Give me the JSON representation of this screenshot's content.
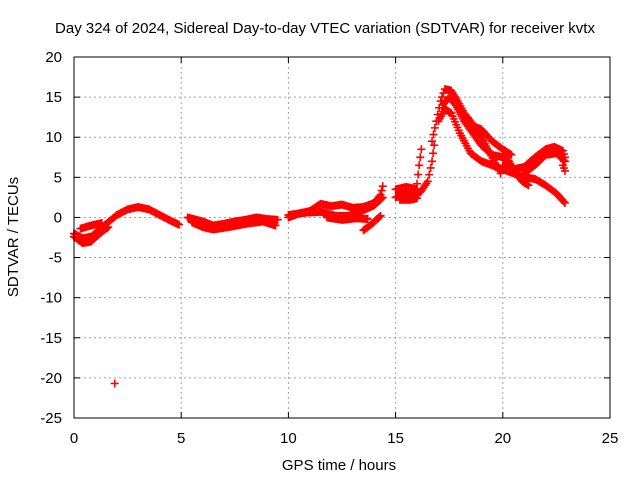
{
  "chart_data": {
    "type": "scatter",
    "title": "Day 324 of 2024, Sidereal Day-to-day VTEC variation (SDTVAR) for receiver kvtx",
    "xlabel": "GPS time / hours",
    "ylabel": "SDTVAR / TECUs",
    "xlim": [
      0,
      25
    ],
    "ylim": [
      -25,
      20
    ],
    "xticks": [
      0,
      5,
      10,
      15,
      20,
      25
    ],
    "yticks": [
      -25,
      -20,
      -15,
      -10,
      -5,
      0,
      5,
      10,
      15,
      20
    ],
    "grid": true,
    "marker": "+",
    "color": "#ff0000",
    "series": [
      {
        "name": "tracks",
        "tracks": [
          [
            [
              0.0,
              -2.0
            ],
            [
              0.4,
              -2.6
            ],
            [
              0.8,
              -2.4
            ],
            [
              1.2,
              -1.5
            ],
            [
              1.5,
              -0.8
            ],
            [
              2.0,
              0.3
            ],
            [
              2.5,
              1.0
            ],
            [
              3.0,
              1.3
            ],
            [
              3.5,
              1.0
            ],
            [
              4.0,
              0.3
            ],
            [
              4.5,
              -0.4
            ],
            [
              4.9,
              -0.9
            ]
          ],
          [
            [
              0.0,
              -2.4
            ],
            [
              0.4,
              -3.2
            ],
            [
              0.8,
              -3.0
            ],
            [
              1.2,
              -2.0
            ],
            [
              1.6,
              -1.2
            ]
          ],
          [
            [
              0.3,
              -1.4
            ],
            [
              0.8,
              -1.0
            ],
            [
              1.3,
              -0.7
            ]
          ],
          [
            [
              5.3,
              0.0
            ],
            [
              6.0,
              -0.5
            ],
            [
              6.5,
              -1.0
            ],
            [
              7.0,
              -0.8
            ],
            [
              7.5,
              -0.5
            ],
            [
              8.0,
              -0.3
            ],
            [
              8.5,
              0.0
            ],
            [
              9.0,
              -0.2
            ],
            [
              9.5,
              -0.3
            ]
          ],
          [
            [
              5.5,
              -0.6
            ],
            [
              6.0,
              -1.2
            ],
            [
              6.5,
              -1.5
            ],
            [
              7.2,
              -1.2
            ],
            [
              8.0,
              -0.8
            ],
            [
              8.8,
              -0.5
            ],
            [
              9.4,
              -1.0
            ]
          ],
          [
            [
              10.0,
              0.0
            ],
            [
              10.5,
              0.5
            ],
            [
              11.0,
              0.8
            ],
            [
              11.5,
              1.7
            ],
            [
              12.0,
              1.4
            ],
            [
              12.5,
              1.6
            ],
            [
              13.0,
              1.2
            ],
            [
              13.5,
              1.3
            ],
            [
              14.0,
              1.8
            ],
            [
              14.3,
              2.8
            ],
            [
              14.4,
              3.9
            ]
          ],
          [
            [
              10.0,
              0.3
            ],
            [
              10.8,
              0.6
            ],
            [
              11.5,
              0.7
            ],
            [
              12.2,
              0.2
            ],
            [
              12.8,
              0.2
            ],
            [
              13.4,
              0.8
            ],
            [
              14.0,
              1.5
            ],
            [
              14.4,
              2.5
            ]
          ],
          [
            [
              11.8,
              0.0
            ],
            [
              12.5,
              -0.3
            ],
            [
              13.2,
              -0.1
            ],
            [
              13.7,
              -0.2
            ]
          ],
          [
            [
              13.5,
              -1.6
            ],
            [
              13.9,
              -0.8
            ],
            [
              14.3,
              0.2
            ]
          ],
          [
            [
              15.0,
              2.5
            ],
            [
              15.3,
              2.8
            ],
            [
              15.7,
              3.0
            ],
            [
              16.0,
              2.8
            ],
            [
              16.2,
              3.3
            ],
            [
              16.5,
              4.5
            ],
            [
              16.7,
              7.0
            ],
            [
              16.8,
              9.0
            ]
          ],
          [
            [
              15.0,
              3.5
            ],
            [
              15.5,
              3.8
            ],
            [
              16.0,
              3.5
            ]
          ],
          [
            [
              15.2,
              2.2
            ],
            [
              15.7,
              2.2
            ],
            [
              16.0,
              2.4
            ]
          ],
          [
            [
              16.0,
              4.2
            ],
            [
              16.1,
              6.5
            ],
            [
              16.2,
              8.5
            ]
          ],
          [
            [
              16.7,
              9.5
            ],
            [
              16.9,
              12.0
            ],
            [
              17.1,
              14.5
            ],
            [
              17.3,
              16.0
            ],
            [
              17.6,
              15.8
            ],
            [
              17.9,
              14.5
            ],
            [
              18.2,
              13.0
            ],
            [
              18.5,
              12.0
            ],
            [
              18.8,
              10.8
            ],
            [
              19.1,
              9.5
            ],
            [
              19.4,
              8.0
            ],
            [
              19.7,
              6.5
            ],
            [
              19.9,
              5.5
            ]
          ],
          [
            [
              17.2,
              14.0
            ],
            [
              17.5,
              15.0
            ],
            [
              17.8,
              14.0
            ],
            [
              18.2,
              12.0
            ],
            [
              18.6,
              10.5
            ],
            [
              19.0,
              9.0
            ],
            [
              19.5,
              7.8
            ],
            [
              20.0,
              7.5
            ],
            [
              20.3,
              7.0
            ],
            [
              20.6,
              5.5
            ],
            [
              20.9,
              4.5
            ],
            [
              21.2,
              4.0
            ]
          ],
          [
            [
              17.0,
              12.0
            ],
            [
              17.3,
              13.5
            ],
            [
              17.6,
              13.0
            ],
            [
              18.0,
              10.5
            ],
            [
              18.5,
              8.0
            ],
            [
              19.0,
              7.0
            ],
            [
              19.5,
              6.5
            ],
            [
              20.0,
              6.0
            ],
            [
              20.5,
              5.5
            ],
            [
              21.0,
              5.0
            ],
            [
              21.5,
              4.8
            ],
            [
              22.0,
              4.0
            ],
            [
              22.5,
              3.0
            ],
            [
              22.9,
              1.8
            ]
          ],
          [
            [
              18.5,
              11.5
            ],
            [
              19.0,
              11.0
            ],
            [
              19.5,
              9.5
            ],
            [
              20.0,
              8.5
            ],
            [
              20.4,
              7.8
            ]
          ],
          [
            [
              20.0,
              6.5
            ],
            [
              20.5,
              6.0
            ],
            [
              21.0,
              6.3
            ],
            [
              21.5,
              7.5
            ],
            [
              22.0,
              8.5
            ],
            [
              22.4,
              8.8
            ],
            [
              22.8,
              8.3
            ],
            [
              22.9,
              7.5
            ],
            [
              22.8,
              6.5
            ],
            [
              22.9,
              5.8
            ]
          ],
          [
            [
              21.0,
              5.5
            ],
            [
              21.5,
              6.5
            ],
            [
              22.0,
              7.8
            ],
            [
              22.5,
              8.0
            ],
            [
              22.9,
              7.0
            ]
          ]
        ],
        "isolated": [
          [
            1.9,
            -20.7
          ]
        ]
      }
    ]
  }
}
